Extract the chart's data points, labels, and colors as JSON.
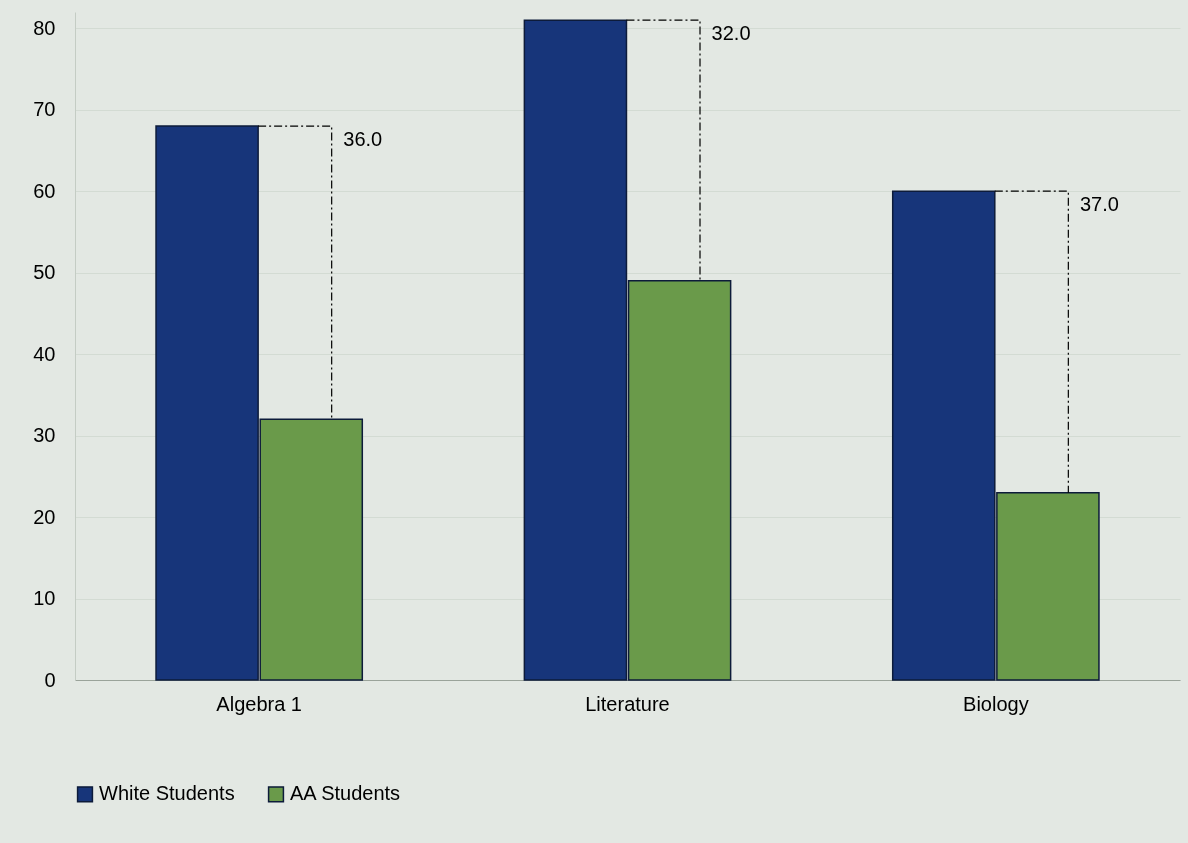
{
  "chart_data": {
    "type": "bar",
    "categories": [
      "Algebra 1",
      "Literature",
      "Biology"
    ],
    "series": [
      {
        "name": "White Students",
        "color": "#17357a",
        "values": [
          68,
          81,
          60
        ]
      },
      {
        "name": "AA Students",
        "color": "#6a9a4a",
        "values": [
          32,
          49,
          23
        ]
      }
    ],
    "ylim": [
      0,
      82
    ],
    "yticks": [
      0,
      10,
      20,
      30,
      40,
      50,
      60,
      70,
      80
    ],
    "grid": "y",
    "legend": "bottom",
    "annotations": [
      "36.0",
      "32.0",
      "37.0"
    ]
  }
}
